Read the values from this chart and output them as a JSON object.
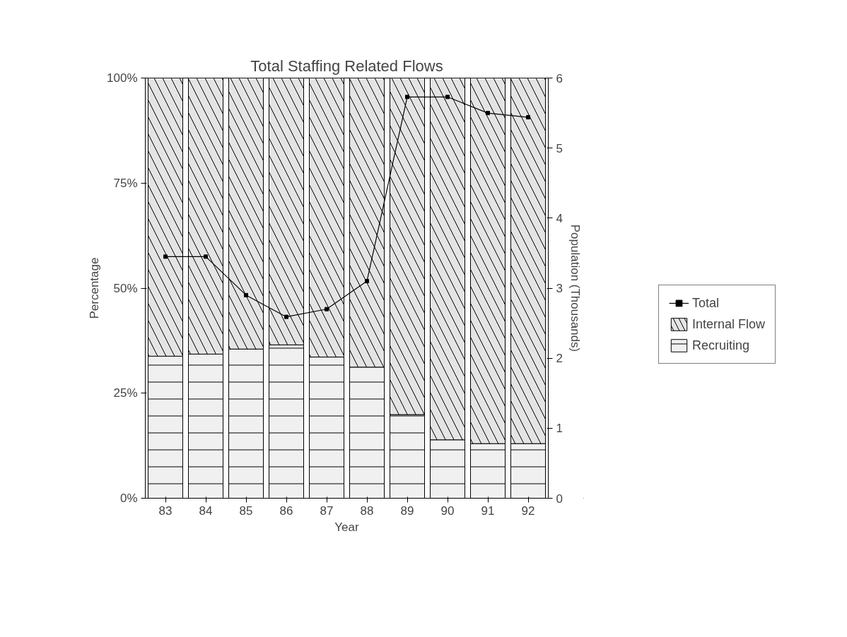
{
  "chart_data": {
    "type": "bar",
    "stacked": true,
    "title": "Total Staffing Related Flows",
    "xlabel": "Year",
    "ylabel": "Percentage",
    "y2label": "Population (Thousands)",
    "categories": [
      "83",
      "84",
      "85",
      "86",
      "87",
      "88",
      "89",
      "90",
      "91",
      "92"
    ],
    "series": [
      {
        "name": "Recruiting",
        "color": "#f0f0f0",
        "values": [
          33.8,
          34.3,
          35.5,
          36.5,
          33.6,
          31.2,
          19.9,
          13.9,
          13.0,
          13.0
        ]
      },
      {
        "name": "Internal Flow",
        "color": "#e4e4e4",
        "values": [
          66.2,
          65.7,
          64.5,
          63.5,
          66.4,
          68.8,
          80.1,
          86.1,
          87.0,
          87.0
        ]
      },
      {
        "name": "Total",
        "type": "line",
        "axis": "y2",
        "color": "#000000",
        "values": [
          3.45,
          3.45,
          2.9,
          2.59,
          2.7,
          3.1,
          5.73,
          5.73,
          5.5,
          5.44
        ]
      }
    ],
    "ylim": [
      0,
      100
    ],
    "yticks": [
      {
        "value": 0,
        "label": "0%"
      },
      {
        "value": 25,
        "label": "25%"
      },
      {
        "value": 50,
        "label": "50%"
      },
      {
        "value": 75,
        "label": "75%"
      },
      {
        "value": 100,
        "label": "100%"
      }
    ],
    "y2lim": [
      0,
      6
    ],
    "y2ticks": [
      0,
      1,
      2,
      3,
      4,
      5,
      6
    ],
    "grid": false,
    "legend": "right",
    "marker": "square",
    "line_style": "solid"
  }
}
